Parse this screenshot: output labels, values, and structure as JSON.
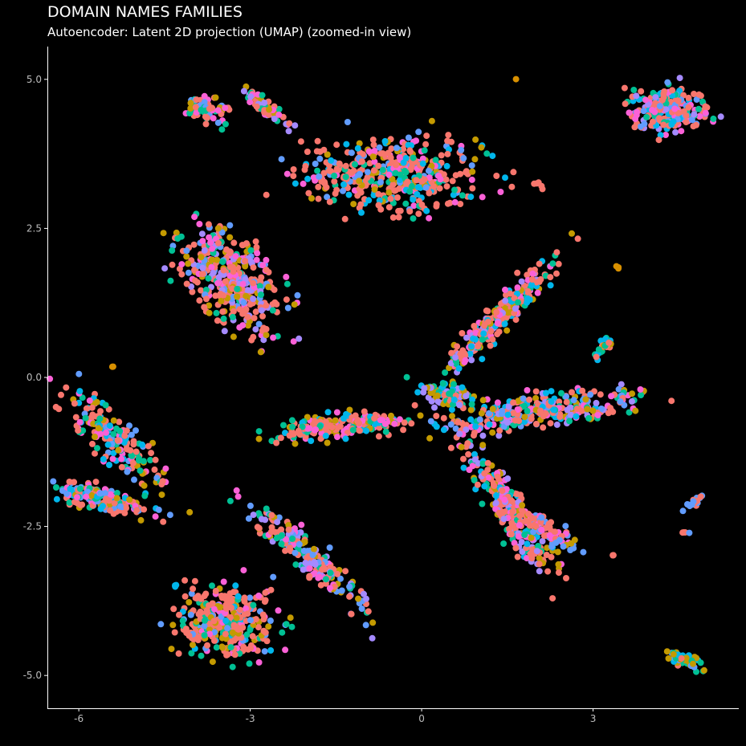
{
  "header": {
    "title": "DOMAIN NAMES FAMILIES",
    "subtitle": "Autoencoder: Latent 2D projection (UMAP) (zoomed-in view)"
  },
  "colors": {
    "background": "#000000",
    "axis": "#ffffff",
    "tick_text": "#bdbdbd",
    "palette": [
      "#f8766d",
      "#c49a00",
      "#53b400",
      "#00c094",
      "#00b6eb",
      "#619cff",
      "#a58aff",
      "#fb61d7",
      "#d89000"
    ]
  },
  "chart_data": {
    "type": "scatter",
    "title": "DOMAIN NAMES FAMILIES",
    "subtitle": "Autoencoder: Latent 2D projection (UMAP) (zoomed-in view)",
    "xlabel": "",
    "ylabel": "",
    "xlim": [
      -6.55,
      5.55
    ],
    "ylim": [
      -5.55,
      5.55
    ],
    "x_ticks": [
      {
        "value": -6,
        "label": "-6"
      },
      {
        "value": -3,
        "label": "-3"
      },
      {
        "value": 0,
        "label": "0"
      },
      {
        "value": 3,
        "label": "3"
      }
    ],
    "y_ticks": [
      {
        "value": 5,
        "label": "5.0"
      },
      {
        "value": 2.5,
        "label": "2.5"
      },
      {
        "value": 0,
        "label": "0.0"
      },
      {
        "value": -2.5,
        "label": "-2.5"
      },
      {
        "value": -5,
        "label": "-5.0"
      }
    ],
    "grid": false,
    "legend": "none",
    "point_color_note": "points colored by domain-name family; salmon is the dominant family",
    "clusters": [
      {
        "center": [
          -3.8,
          4.5
        ],
        "spread": [
          0.18,
          0.45
        ],
        "angle": 80,
        "points": 60,
        "colors": [
          5,
          3,
          1,
          7,
          0
        ]
      },
      {
        "center": [
          -2.7,
          4.5
        ],
        "spread": [
          0.1,
          0.5
        ],
        "angle": 55,
        "points": 55,
        "colors": [
          7,
          6,
          1,
          3,
          0
        ]
      },
      {
        "center": [
          -0.55,
          3.4
        ],
        "spread": [
          0.55,
          1.35
        ],
        "angle": 90,
        "points": 460,
        "colors": [
          0,
          0,
          0,
          0,
          1,
          3,
          4,
          5,
          7
        ]
      },
      {
        "center": [
          4.3,
          4.5
        ],
        "spread": [
          0.6,
          0.35
        ],
        "angle": 0,
        "points": 240,
        "colors": [
          0,
          0,
          0,
          5,
          3,
          4,
          6,
          7
        ]
      },
      {
        "center": [
          -3.3,
          1.6
        ],
        "spread": [
          1.0,
          0.55
        ],
        "angle": -45,
        "points": 380,
        "colors": [
          0,
          0,
          0,
          0,
          1,
          3,
          5,
          7,
          6
        ]
      },
      {
        "center": [
          1.4,
          1.05
        ],
        "spread": [
          1.25,
          0.2
        ],
        "angle": 45,
        "points": 260,
        "colors": [
          0,
          0,
          0,
          4,
          1,
          3,
          6,
          7
        ]
      },
      {
        "center": [
          2.15,
          -0.55
        ],
        "spread": [
          1.6,
          0.25
        ],
        "angle": 8,
        "points": 300,
        "colors": [
          0,
          0,
          0,
          6,
          4,
          1,
          3,
          5,
          7
        ]
      },
      {
        "center": [
          0.45,
          -0.3
        ],
        "spread": [
          0.2,
          0.5
        ],
        "angle": 80,
        "points": 90,
        "colors": [
          4,
          3,
          6,
          1,
          0
        ]
      },
      {
        "center": [
          3.2,
          0.5
        ],
        "spread": [
          0.25,
          0.1
        ],
        "angle": 60,
        "points": 25,
        "colors": [
          4,
          1,
          3,
          0
        ]
      },
      {
        "center": [
          -1.4,
          -0.8
        ],
        "spread": [
          1.15,
          0.18
        ],
        "angle": 5,
        "points": 220,
        "colors": [
          0,
          0,
          0,
          4,
          7,
          1,
          3
        ]
      },
      {
        "center": [
          -5.35,
          -1.1
        ],
        "spread": [
          1.1,
          0.3
        ],
        "angle": -45,
        "points": 180,
        "colors": [
          0,
          0,
          1,
          3,
          4,
          5,
          7
        ]
      },
      {
        "center": [
          -5.55,
          -2.05
        ],
        "spread": [
          0.85,
          0.2
        ],
        "angle": -15,
        "points": 150,
        "colors": [
          0,
          0,
          1,
          3,
          5,
          7,
          4
        ]
      },
      {
        "center": [
          1.6,
          -2.3
        ],
        "spread": [
          1.25,
          0.25
        ],
        "angle": -55,
        "points": 260,
        "colors": [
          0,
          0,
          0,
          3,
          4,
          1,
          7,
          6
        ]
      },
      {
        "center": [
          2.25,
          -2.6
        ],
        "spread": [
          0.55,
          0.2
        ],
        "angle": -30,
        "points": 80,
        "colors": [
          0,
          0,
          1,
          5,
          7
        ]
      },
      {
        "center": [
          -1.95,
          -3.05
        ],
        "spread": [
          1.25,
          0.22
        ],
        "angle": -40,
        "points": 200,
        "colors": [
          0,
          0,
          1,
          5,
          7,
          3,
          6
        ]
      },
      {
        "center": [
          -3.45,
          -4.1
        ],
        "spread": [
          0.55,
          0.8
        ],
        "angle": 90,
        "points": 330,
        "colors": [
          0,
          0,
          0,
          0,
          3,
          5,
          7,
          1,
          4
        ]
      },
      {
        "center": [
          4.6,
          -4.75
        ],
        "spread": [
          0.3,
          0.1
        ],
        "angle": -20,
        "points": 45,
        "colors": [
          4,
          5,
          3,
          1,
          0
        ]
      },
      {
        "center": [
          4.75,
          -2.1
        ],
        "spread": [
          0.2,
          0.06
        ],
        "angle": 30,
        "points": 18,
        "colors": [
          0,
          5
        ]
      },
      {
        "center": [
          -4.3,
          -3.5
        ],
        "spread": [
          0.04,
          0.02
        ],
        "angle": 0,
        "points": 3,
        "colors": [
          4
        ]
      },
      {
        "center": [
          -5.4,
          0.17
        ],
        "spread": [
          0.02,
          0.04
        ],
        "angle": 0,
        "points": 2,
        "colors": [
          8
        ]
      },
      {
        "center": [
          3.45,
          1.85
        ],
        "spread": [
          0.04,
          0.06
        ],
        "angle": 45,
        "points": 3,
        "colors": [
          8
        ]
      },
      {
        "center": [
          2.05,
          3.25
        ],
        "spread": [
          0.05,
          0.1
        ],
        "angle": 60,
        "points": 5,
        "colors": [
          0
        ]
      },
      {
        "center": [
          1.65,
          5.0
        ],
        "spread": [
          0.01,
          0.01
        ],
        "angle": 0,
        "points": 1,
        "colors": [
          8
        ]
      },
      {
        "center": [
          3.35,
          -3.0
        ],
        "spread": [
          0.05,
          0.02
        ],
        "angle": 0,
        "points": 3,
        "colors": [
          0
        ]
      },
      {
        "center": [
          4.6,
          -2.6
        ],
        "spread": [
          0.02,
          0.08
        ],
        "angle": 90,
        "points": 4,
        "colors": [
          5,
          0
        ]
      }
    ]
  }
}
